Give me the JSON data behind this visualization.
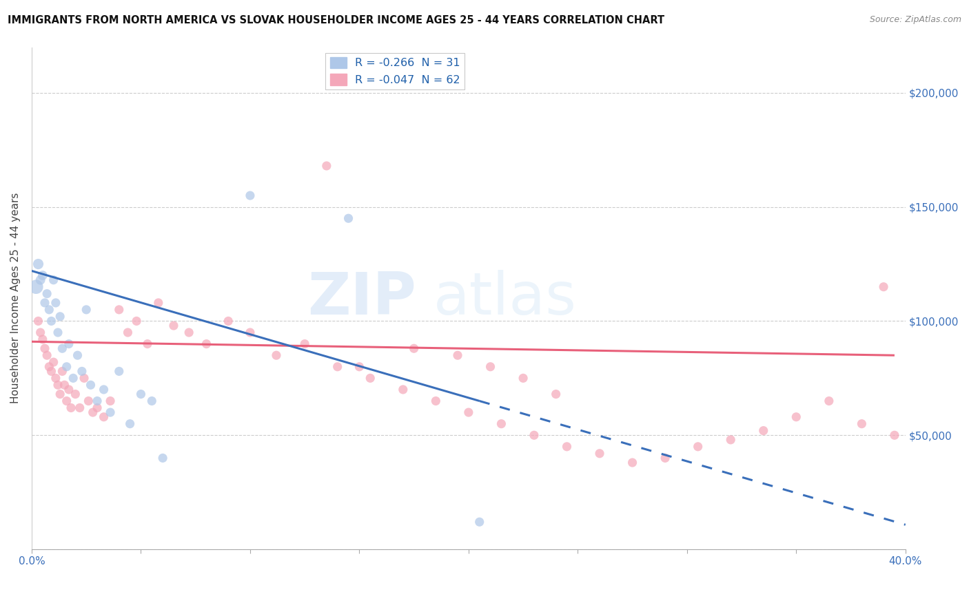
{
  "title": "IMMIGRANTS FROM NORTH AMERICA VS SLOVAK HOUSEHOLDER INCOME AGES 25 - 44 YEARS CORRELATION CHART",
  "source": "Source: ZipAtlas.com",
  "ylabel": "Householder Income Ages 25 - 44 years",
  "xlim": [
    0.0,
    0.4
  ],
  "ylim": [
    0,
    220000
  ],
  "yticks": [
    0,
    50000,
    100000,
    150000,
    200000
  ],
  "ytick_labels": [
    "",
    "$50,000",
    "$100,000",
    "$150,000",
    "$200,000"
  ],
  "xticks": [
    0.0,
    0.05,
    0.1,
    0.15,
    0.2,
    0.25,
    0.3,
    0.35,
    0.4
  ],
  "xtick_labels_show": [
    "0.0%",
    "",
    "",
    "",
    "",
    "",
    "",
    "",
    "40.0%"
  ],
  "legend1_label": "R = -0.266  N = 31",
  "legend2_label": "R = -0.047  N = 62",
  "blue_fill": "#aec7e8",
  "pink_fill": "#f4a7b9",
  "blue_line_color": "#3a6fba",
  "pink_line_color": "#e8607a",
  "watermark_zip": "ZIP",
  "watermark_atlas": "atlas",
  "blue_scatter_x": [
    0.002,
    0.003,
    0.004,
    0.005,
    0.006,
    0.007,
    0.008,
    0.009,
    0.01,
    0.011,
    0.012,
    0.013,
    0.014,
    0.016,
    0.017,
    0.019,
    0.021,
    0.023,
    0.025,
    0.027,
    0.03,
    0.033,
    0.036,
    0.04,
    0.045,
    0.05,
    0.055,
    0.06,
    0.1,
    0.145,
    0.205
  ],
  "blue_scatter_y": [
    115000,
    125000,
    118000,
    120000,
    108000,
    112000,
    105000,
    100000,
    118000,
    108000,
    95000,
    102000,
    88000,
    80000,
    90000,
    75000,
    85000,
    78000,
    105000,
    72000,
    65000,
    70000,
    60000,
    78000,
    55000,
    68000,
    65000,
    40000,
    155000,
    145000,
    12000
  ],
  "blue_scatter_size": [
    220,
    120,
    100,
    100,
    90,
    90,
    90,
    90,
    90,
    90,
    90,
    90,
    90,
    90,
    90,
    90,
    90,
    90,
    90,
    90,
    90,
    90,
    90,
    90,
    90,
    90,
    90,
    90,
    90,
    90,
    90
  ],
  "pink_scatter_x": [
    0.003,
    0.004,
    0.005,
    0.006,
    0.007,
    0.008,
    0.009,
    0.01,
    0.011,
    0.012,
    0.013,
    0.014,
    0.015,
    0.016,
    0.017,
    0.018,
    0.02,
    0.022,
    0.024,
    0.026,
    0.028,
    0.03,
    0.033,
    0.036,
    0.04,
    0.044,
    0.048,
    0.053,
    0.058,
    0.065,
    0.072,
    0.08,
    0.09,
    0.1,
    0.112,
    0.125,
    0.14,
    0.155,
    0.17,
    0.185,
    0.2,
    0.215,
    0.23,
    0.245,
    0.26,
    0.275,
    0.29,
    0.305,
    0.32,
    0.335,
    0.35,
    0.365,
    0.38,
    0.395,
    0.15,
    0.175,
    0.195,
    0.21,
    0.225,
    0.24,
    0.39,
    0.135
  ],
  "pink_scatter_y": [
    100000,
    95000,
    92000,
    88000,
    85000,
    80000,
    78000,
    82000,
    75000,
    72000,
    68000,
    78000,
    72000,
    65000,
    70000,
    62000,
    68000,
    62000,
    75000,
    65000,
    60000,
    62000,
    58000,
    65000,
    105000,
    95000,
    100000,
    90000,
    108000,
    98000,
    95000,
    90000,
    100000,
    95000,
    85000,
    90000,
    80000,
    75000,
    70000,
    65000,
    60000,
    55000,
    50000,
    45000,
    42000,
    38000,
    40000,
    45000,
    48000,
    52000,
    58000,
    65000,
    55000,
    50000,
    80000,
    88000,
    85000,
    80000,
    75000,
    68000,
    115000,
    168000
  ],
  "pink_scatter_size": [
    90,
    90,
    90,
    90,
    90,
    90,
    90,
    90,
    90,
    90,
    90,
    90,
    90,
    90,
    90,
    90,
    90,
    90,
    90,
    90,
    90,
    90,
    90,
    90,
    90,
    90,
    90,
    90,
    90,
    90,
    90,
    90,
    90,
    90,
    90,
    90,
    90,
    90,
    90,
    90,
    90,
    90,
    90,
    90,
    90,
    90,
    90,
    90,
    90,
    90,
    90,
    90,
    90,
    90,
    90,
    90,
    90,
    90,
    90,
    90,
    90,
    90
  ],
  "blue_line_x0": 0.0,
  "blue_line_x1": 0.205,
  "blue_line_x_dash_end": 0.4,
  "blue_line_y_at_0": 122000,
  "blue_line_y_at_205": 65000,
  "pink_line_x0": 0.0,
  "pink_line_x1": 0.395,
  "pink_line_y_at_0": 91000,
  "pink_line_y_at_395": 85000
}
